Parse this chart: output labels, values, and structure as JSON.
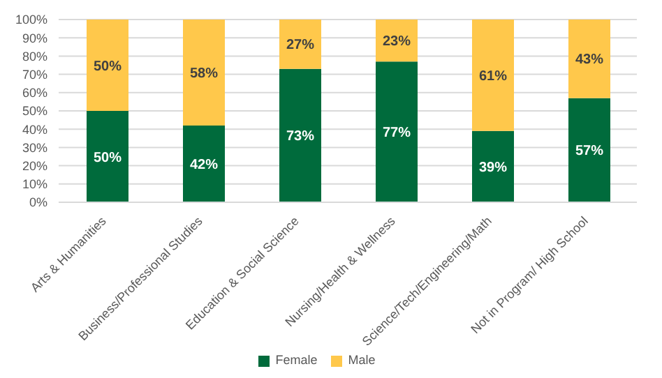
{
  "chart_data": {
    "type": "bar",
    "stacked": true,
    "categories": [
      "Arts & Humanities",
      "Business/Professional Studies",
      "Education & Social Science",
      "Nursing/Health & Wellness",
      "Science/Tech/Engineering/Math",
      "Not in Program/ High School"
    ],
    "series": [
      {
        "name": "Female",
        "color": "#006b3c",
        "values": [
          50,
          42,
          73,
          77,
          39,
          57
        ],
        "value_labels": [
          "50%",
          "42%",
          "73%",
          "77%",
          "39%",
          "57%"
        ]
      },
      {
        "name": "Male",
        "color": "#ffc84b",
        "values": [
          50,
          58,
          27,
          23,
          61,
          43
        ],
        "value_labels": [
          "50%",
          "58%",
          "27%",
          "23%",
          "61%",
          "43%"
        ]
      }
    ],
    "ylim": [
      0,
      100
    ],
    "yticks": [
      {
        "value": 0,
        "label": "0%"
      },
      {
        "value": 10,
        "label": "10%"
      },
      {
        "value": 20,
        "label": "20%"
      },
      {
        "value": 30,
        "label": "30%"
      },
      {
        "value": 40,
        "label": "40%"
      },
      {
        "value": 50,
        "label": "50%"
      },
      {
        "value": 60,
        "label": "60%"
      },
      {
        "value": 70,
        "label": "70%"
      },
      {
        "value": 80,
        "label": "80%"
      },
      {
        "value": 90,
        "label": "90%"
      },
      {
        "value": 100,
        "label": "100%"
      }
    ],
    "grid": "y",
    "legend": "bottom"
  }
}
